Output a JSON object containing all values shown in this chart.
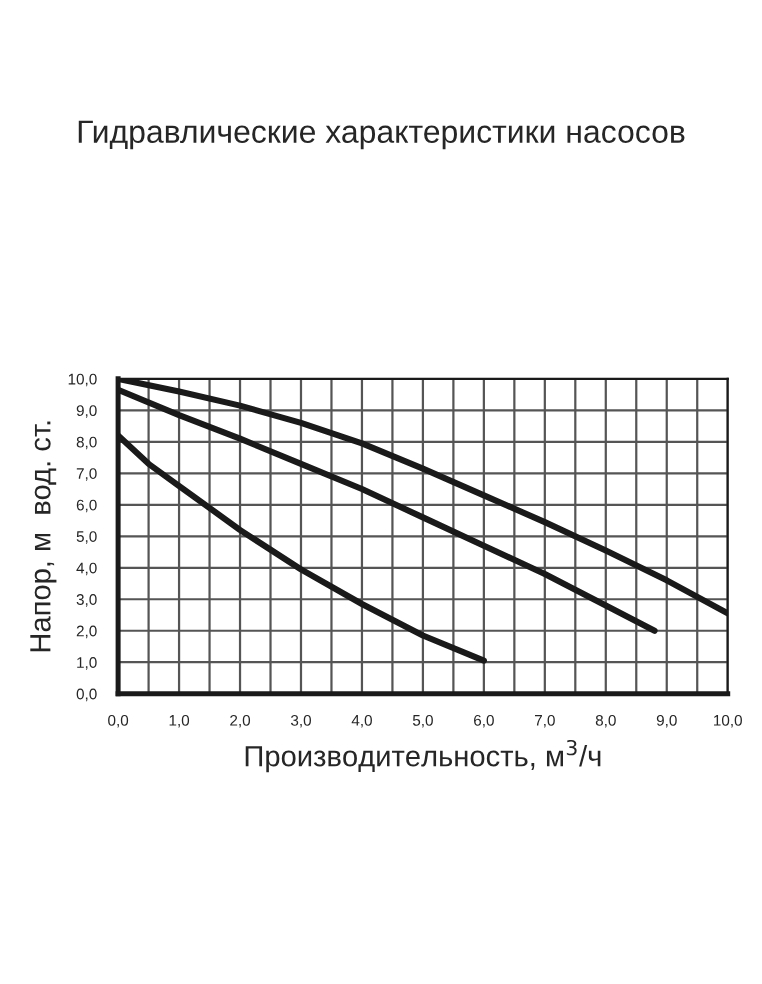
{
  "chart_data": {
    "type": "line",
    "title": "Гидравлические характеристики насосов",
    "xlabel": "Производительность, м$^{3}$/ч",
    "ylabel": "Напор, м  вод. ст.",
    "series": [
      {
        "color": "#1a1a1a",
        "x": [
          0,
          1,
          2,
          3,
          4,
          5,
          6,
          7,
          8,
          9,
          10
        ],
        "values": [
          10,
          9.6,
          9.15,
          8.6,
          7.95,
          7.15,
          6.3,
          5.45,
          4.55,
          3.6,
          2.55
        ]
      },
      {
        "color": "#1a1a1a",
        "x": [
          0,
          1,
          2,
          3,
          4,
          5,
          6,
          7,
          8,
          8.8
        ],
        "values": [
          9.65,
          8.85,
          8.1,
          7.3,
          6.5,
          5.6,
          4.7,
          3.8,
          2.8,
          2.0
        ]
      },
      {
        "color": "#1a1a1a",
        "x": [
          0,
          0.5,
          1,
          2,
          3,
          4,
          5,
          6
        ],
        "values": [
          8.2,
          7.3,
          6.6,
          5.2,
          3.95,
          2.85,
          1.85,
          1.05
        ]
      }
    ],
    "xlim": [
      0,
      10
    ],
    "ylim": [
      0,
      10
    ],
    "xticks": [
      {
        "value": 0,
        "label": "0,0"
      },
      {
        "value": 0.5,
        "label": null
      },
      {
        "value": 1,
        "label": "1,0"
      },
      {
        "value": 1.5,
        "label": null
      },
      {
        "value": 2,
        "label": "2,0"
      },
      {
        "value": 2.5,
        "label": null
      },
      {
        "value": 3,
        "label": "3,0"
      },
      {
        "value": 3.5,
        "label": null
      },
      {
        "value": 4,
        "label": "4,0"
      },
      {
        "value": 4.5,
        "label": null
      },
      {
        "value": 5,
        "label": "5,0"
      },
      {
        "value": 5.5,
        "label": null
      },
      {
        "value": 6,
        "label": "6,0"
      },
      {
        "value": 6.5,
        "label": null
      },
      {
        "value": 7,
        "label": "7,0"
      },
      {
        "value": 7.5,
        "label": null
      },
      {
        "value": 8,
        "label": "8,0"
      },
      {
        "value": 8.5,
        "label": null
      },
      {
        "value": 9,
        "label": "9,0"
      },
      {
        "value": 9.5,
        "label": null
      },
      {
        "value": 10,
        "label": "10,0"
      }
    ],
    "yticks": [
      {
        "value": 0,
        "label": "0,0"
      },
      {
        "value": 1,
        "label": "1,0"
      },
      {
        "value": 2,
        "label": "2,0"
      },
      {
        "value": 3,
        "label": "3,0"
      },
      {
        "value": 4,
        "label": "4,0"
      },
      {
        "value": 5,
        "label": "5,0"
      },
      {
        "value": 6,
        "label": "6,0"
      },
      {
        "value": 7,
        "label": "7,0"
      },
      {
        "value": 8,
        "label": "8,0"
      },
      {
        "value": 9,
        "label": "9,0"
      },
      {
        "value": 10,
        "label": "10,0"
      }
    ],
    "grid": true,
    "marker": "none",
    "line_style": "solid"
  }
}
